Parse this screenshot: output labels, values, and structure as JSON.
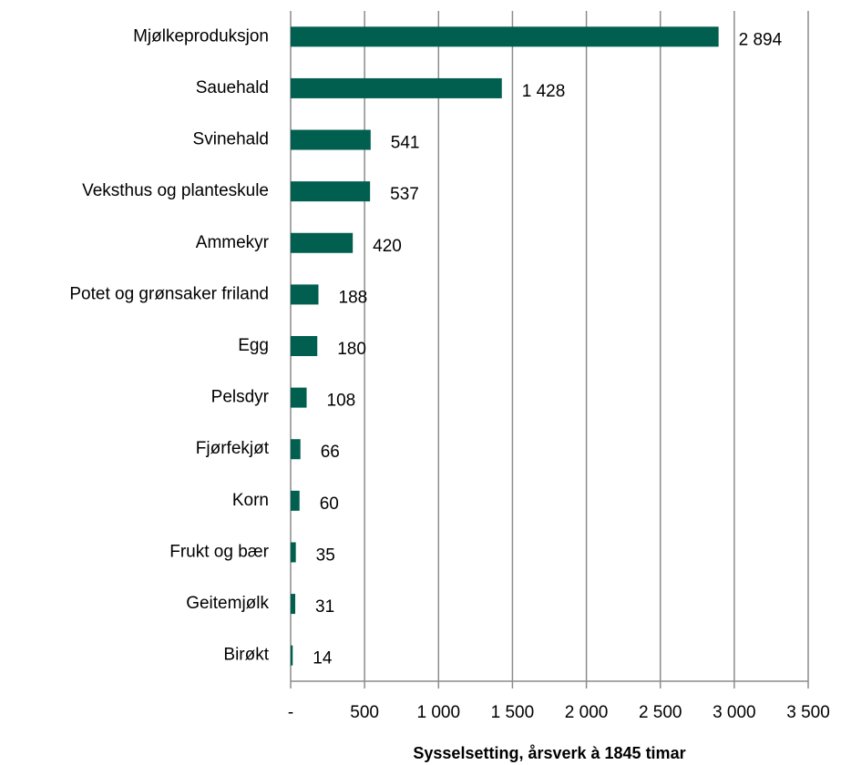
{
  "chart_data": {
    "type": "bar",
    "orientation": "horizontal",
    "x_label": "Sysselsetting, årsverk à 1845 timar",
    "categories": [
      "Mjølkeproduksjon",
      "Sauehald",
      "Svinehald",
      "Veksthus og planteskule",
      "Ammekyr",
      "Potet og grønsaker friland",
      "Egg",
      "Pelsdyr",
      "Fjørfekjøt",
      "Korn",
      "Frukt og bær",
      "Geitemjølk",
      "Birøkt"
    ],
    "values": [
      2894,
      1428,
      541,
      537,
      420,
      188,
      180,
      108,
      66,
      60,
      35,
      31,
      14
    ],
    "value_labels": [
      "2 894",
      "1 428",
      "541",
      "537",
      "420",
      "188",
      "180",
      "108",
      "66",
      "60",
      "35",
      "31",
      "14"
    ],
    "color": "#005f4e",
    "xlim": [
      0,
      3500
    ],
    "xticks": [
      {
        "value": 0,
        "label": "-"
      },
      500,
      {
        "value": 1000,
        "label": "1 000"
      },
      {
        "value": 1500,
        "label": "1 500"
      },
      {
        "value": 2000,
        "label": "2 000"
      },
      {
        "value": 2500,
        "label": "2 500"
      },
      {
        "value": 3000,
        "label": "3 000"
      },
      {
        "value": 3500,
        "label": "3 500"
      }
    ],
    "grid": true
  }
}
